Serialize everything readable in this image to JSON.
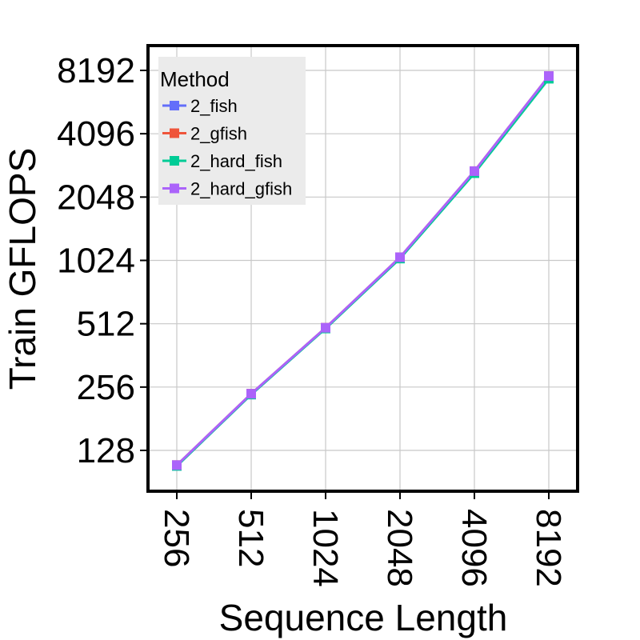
{
  "chart_data": {
    "type": "line",
    "xlabel": "Sequence Length",
    "ylabel": "Train GFLOPS",
    "x_scale": "log2",
    "y_scale": "log2",
    "x": [
      256,
      512,
      1024,
      2048,
      4096,
      8192
    ],
    "x_ticks": [
      "256",
      "512",
      "1024",
      "2048",
      "4096",
      "8192"
    ],
    "y_ticks": [
      "128",
      "256",
      "512",
      "1024",
      "2048",
      "4096",
      "8192"
    ],
    "y_tick_values": [
      128,
      256,
      512,
      1024,
      2048,
      4096,
      8192
    ],
    "ylim": [
      90,
      11000
    ],
    "grid": true,
    "legend": {
      "title": "Method",
      "position": "top-left"
    },
    "series": [
      {
        "name": "2_fish",
        "color": "#636efa",
        "marker": "square",
        "values": [
          108,
          236,
          487,
          1048,
          2680,
          7600
        ]
      },
      {
        "name": "2_gfish",
        "color": "#ef553b",
        "marker": "square",
        "values": [
          109,
          238,
          490,
          1060,
          2720,
          7700
        ]
      },
      {
        "name": "2_hard_fish",
        "color": "#00cc96",
        "marker": "square",
        "values": [
          108,
          236,
          486,
          1045,
          2660,
          7480
        ]
      },
      {
        "name": "2_hard_gfish",
        "color": "#ab63fa",
        "marker": "square",
        "values": [
          109,
          238,
          490,
          1060,
          2720,
          7700
        ]
      }
    ]
  }
}
